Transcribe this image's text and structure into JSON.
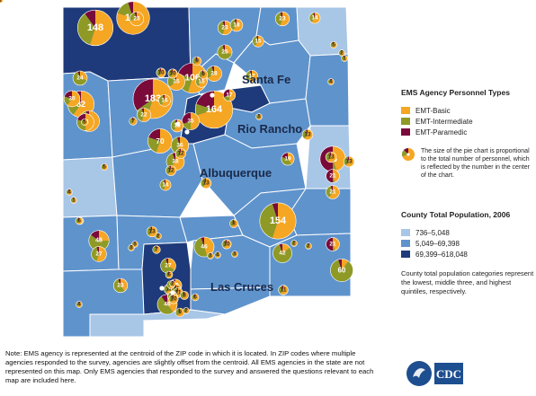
{
  "colors": {
    "emt_basic": "#f5a623",
    "emt_intermediate": "#8f9a26",
    "emt_paramedic": "#7a0a3a",
    "pop_low": "#a8c6e6",
    "pop_mid": "#5f93cc",
    "pop_high": "#1f3a7a",
    "county_border": "#ffffff"
  },
  "cities": [
    {
      "name": "Santa Fe"
    },
    {
      "name": "Rio Rancho"
    },
    {
      "name": "Albuquerque"
    },
    {
      "name": "Las Cruces"
    }
  ],
  "legend": {
    "personnel_title": "EMS Agency Personnel Types",
    "personnel_types": [
      {
        "label": "EMT-Basic",
        "color": "#f5a623"
      },
      {
        "label": "EMT-Intermediate",
        "color": "#8f9a26"
      },
      {
        "label": "EMT-Paramedic",
        "color": "#7a0a3a"
      }
    ],
    "pie_note": "The size of the pie chart is proportional to the total number of personnel, which is reflected by the number in the center of the chart.",
    "population_title": "County Total Population, 2006",
    "population_classes": [
      {
        "label": "736–5,048",
        "color": "#a8c6e6"
      },
      {
        "label": "5,049–69,398",
        "color": "#5f93cc"
      },
      {
        "label": "69,399–618,048",
        "color": "#1f3a7a"
      }
    ],
    "quintile_note": "County total population categories represent the lowest, middle three, and highest quintiles, respectively."
  },
  "footnote": "Note: EMS agency is represented at the centroid of the ZIP code in which it is located. In ZIP codes where multiple agencies responded to the survey, agencies are slightly offset from the centroid. All EMS agencies in the state are not represented on this map. Only EMS agencies that responded to the survey and answered the questions relevant to each map are included here.",
  "logo_text": "CDC",
  "agencies": [
    {
      "total": "148",
      "basic": 0.55,
      "intermediate": 0.35,
      "paramedic": 0.1
    },
    {
      "total": "127",
      "basic": 0.8,
      "intermediate": 0.15,
      "paramedic": 0.05
    },
    {
      "total": "183",
      "basic": 0.55,
      "intermediate": 0.1,
      "paramedic": 0.35
    },
    {
      "total": "164",
      "basic": 0.7,
      "intermediate": 0.1,
      "paramedic": 0.2
    },
    {
      "total": "106",
      "basic": 0.55,
      "intermediate": 0.25,
      "paramedic": 0.2
    },
    {
      "total": "154",
      "basic": 0.55,
      "intermediate": 0.4,
      "paramedic": 0.05
    },
    {
      "total": "82",
      "basic": 0.6,
      "intermediate": 0.35,
      "paramedic": 0.05
    },
    {
      "total": "76",
      "basic": 0.45,
      "intermediate": 0.05,
      "paramedic": 0.5
    },
    {
      "total": "70",
      "basic": 0.55,
      "intermediate": 0.25,
      "paramedic": 0.2
    },
    {
      "total": "60",
      "basic": 0.1,
      "intermediate": 0.85,
      "paramedic": 0.05
    },
    {
      "total": "51",
      "basic": 0.65,
      "intermediate": 0.3,
      "paramedic": 0.05
    },
    {
      "total": "48",
      "basic": 0.25,
      "intermediate": 0.6,
      "paramedic": 0.15
    },
    {
      "total": "46",
      "basic": 0.45,
      "intermediate": 0.5,
      "paramedic": 0.05
    },
    {
      "total": "46",
      "basic": 0.4,
      "intermediate": 0.5,
      "paramedic": 0.1
    },
    {
      "total": "42",
      "basic": 0.15,
      "intermediate": 0.8,
      "paramedic": 0.05
    },
    {
      "total": "38",
      "basic": 0.6,
      "intermediate": 0.35,
      "paramedic": 0.05
    },
    {
      "total": "36",
      "basic": 0.6,
      "intermediate": 0.35,
      "paramedic": 0.05
    },
    {
      "total": "35",
      "basic": 0.65,
      "intermediate": 0.3,
      "paramedic": 0.05
    },
    {
      "total": "35",
      "basic": 0.5,
      "intermediate": 0.2,
      "paramedic": 0.3
    },
    {
      "total": "34",
      "basic": 0.5,
      "intermediate": 0.3,
      "paramedic": 0.2
    },
    {
      "total": "30",
      "basic": 0.6,
      "intermediate": 0.2,
      "paramedic": 0.2
    },
    {
      "total": "28",
      "basic": 0.65,
      "intermediate": 0.3,
      "paramedic": 0.05
    },
    {
      "total": "27",
      "basic": 0.55,
      "intermediate": 0.4,
      "paramedic": 0.05
    },
    {
      "total": "27",
      "basic": 0.35,
      "intermediate": 0.6,
      "paramedic": 0.05
    },
    {
      "total": "25",
      "basic": 0.3,
      "intermediate": 0.65,
      "paramedic": 0.05
    },
    {
      "total": "24",
      "basic": 0.3,
      "intermediate": 0.65,
      "paramedic": 0.05
    },
    {
      "total": "23",
      "basic": 0.55,
      "intermediate": 0.4,
      "paramedic": 0.05
    },
    {
      "total": "23",
      "basic": 0.7,
      "intermediate": 0.25,
      "paramedic": 0.05
    },
    {
      "total": "23",
      "basic": 0.55,
      "intermediate": 0.4,
      "paramedic": 0.05
    },
    {
      "total": "23",
      "basic": 0.4,
      "intermediate": 0.55,
      "paramedic": 0.05
    },
    {
      "total": "22",
      "basic": 0.55,
      "intermediate": 0.4,
      "paramedic": 0.05
    },
    {
      "total": "21",
      "basic": 0.45,
      "intermediate": 0.05,
      "paramedic": 0.5
    },
    {
      "total": "21",
      "basic": 0.45,
      "intermediate": 0.05,
      "paramedic": 0.5
    },
    {
      "total": "21",
      "basic": 0.6,
      "intermediate": 0.35,
      "paramedic": 0.05
    },
    {
      "total": "19",
      "basic": 0.4,
      "intermediate": 0.4,
      "paramedic": 0.2
    },
    {
      "total": "19",
      "basic": 0.6,
      "intermediate": 0.35,
      "paramedic": 0.05
    },
    {
      "total": "18",
      "basic": 0.6,
      "intermediate": 0.35,
      "paramedic": 0.05
    },
    {
      "total": "18",
      "basic": 0.6,
      "intermediate": 0.35,
      "paramedic": 0.05
    },
    {
      "total": "17",
      "basic": 0.6,
      "intermediate": 0.35,
      "paramedic": 0.05
    },
    {
      "total": "17",
      "basic": 0.5,
      "intermediate": 0.2,
      "paramedic": 0.3
    },
    {
      "total": "16",
      "basic": 0.6,
      "intermediate": 0.35,
      "paramedic": 0.05
    },
    {
      "total": "15",
      "basic": 0.6,
      "intermediate": 0.35,
      "paramedic": 0.05
    },
    {
      "total": "15",
      "basic": 0.6,
      "intermediate": 0.35,
      "paramedic": 0.05
    },
    {
      "total": "14",
      "basic": 0.6,
      "intermediate": 0.35,
      "paramedic": 0.05
    },
    {
      "total": "14",
      "basic": 0.55,
      "intermediate": 0.4,
      "paramedic": 0.05
    },
    {
      "total": "13",
      "basic": 0.6,
      "intermediate": 0.35,
      "paramedic": 0.05
    },
    {
      "total": "13",
      "basic": 0.6,
      "intermediate": 0.35,
      "paramedic": 0.05
    },
    {
      "total": "13",
      "basic": 0.6,
      "intermediate": 0.35,
      "paramedic": 0.05
    },
    {
      "total": "13",
      "basic": 0.6,
      "intermediate": 0.35,
      "paramedic": 0.05
    },
    {
      "total": "13",
      "basic": 0.6,
      "intermediate": 0.35,
      "paramedic": 0.05
    },
    {
      "total": "12",
      "basic": 0.6,
      "intermediate": 0.35,
      "paramedic": 0.05
    },
    {
      "total": "12",
      "basic": 0.6,
      "intermediate": 0.35,
      "paramedic": 0.05
    },
    {
      "total": "12",
      "basic": 0.6,
      "intermediate": 0.35,
      "paramedic": 0.05
    },
    {
      "total": "11",
      "basic": 0.6,
      "intermediate": 0.35,
      "paramedic": 0.05
    },
    {
      "total": "11",
      "basic": 0.6,
      "intermediate": 0.35,
      "paramedic": 0.05
    },
    {
      "total": "11",
      "basic": 0.6,
      "intermediate": 0.35,
      "paramedic": 0.05
    },
    {
      "total": "11",
      "basic": 0.6,
      "intermediate": 0.35,
      "paramedic": 0.05
    },
    {
      "total": "10",
      "basic": 0.6,
      "intermediate": 0.35,
      "paramedic": 0.05
    },
    {
      "total": "10",
      "basic": 0.6,
      "intermediate": 0.35,
      "paramedic": 0.05
    },
    {
      "total": "10",
      "basic": 0.6,
      "intermediate": 0.35,
      "paramedic": 0.05
    },
    {
      "total": "10",
      "basic": 0.6,
      "intermediate": 0.35,
      "paramedic": 0.05
    },
    {
      "total": "9",
      "basic": 0.6,
      "intermediate": 0.35,
      "paramedic": 0.05
    },
    {
      "total": "9",
      "basic": 0.6,
      "intermediate": 0.35,
      "paramedic": 0.05
    },
    {
      "total": "9",
      "basic": 0.6,
      "intermediate": 0.35,
      "paramedic": 0.05
    },
    {
      "total": "8",
      "basic": 0.6,
      "intermediate": 0.35,
      "paramedic": 0.05
    },
    {
      "total": "8",
      "basic": 0.6,
      "intermediate": 0.35,
      "paramedic": 0.05
    },
    {
      "total": "7",
      "basic": 0.6,
      "intermediate": 0.35,
      "paramedic": 0.05
    },
    {
      "total": "7",
      "basic": 0.6,
      "intermediate": 0.35,
      "paramedic": 0.05
    },
    {
      "total": "7",
      "basic": 0.6,
      "intermediate": 0.35,
      "paramedic": 0.05
    },
    {
      "total": "6",
      "basic": 0.6,
      "intermediate": 0.35,
      "paramedic": 0.05
    },
    {
      "total": "6",
      "basic": 0.6,
      "intermediate": 0.35,
      "paramedic": 0.05
    },
    {
      "total": "6",
      "basic": 0.6,
      "intermediate": 0.35,
      "paramedic": 0.05
    },
    {
      "total": "6",
      "basic": 0.6,
      "intermediate": 0.35,
      "paramedic": 0.05
    },
    {
      "total": "5",
      "basic": 0.6,
      "intermediate": 0.35,
      "paramedic": 0.05
    },
    {
      "total": "5",
      "basic": 0.6,
      "intermediate": 0.35,
      "paramedic": 0.05
    },
    {
      "total": "5",
      "basic": 0.6,
      "intermediate": 0.35,
      "paramedic": 0.05
    },
    {
      "total": "4",
      "basic": 0.6,
      "intermediate": 0.35,
      "paramedic": 0.05
    },
    {
      "total": "4",
      "basic": 0.6,
      "intermediate": 0.35,
      "paramedic": 0.05
    },
    {
      "total": "4",
      "basic": 0.6,
      "intermediate": 0.35,
      "paramedic": 0.05
    },
    {
      "total": "4",
      "basic": 0.6,
      "intermediate": 0.35,
      "paramedic": 0.05
    },
    {
      "total": "3",
      "basic": 0.6,
      "intermediate": 0.35,
      "paramedic": 0.05
    },
    {
      "total": "3",
      "basic": 0.6,
      "intermediate": 0.35,
      "paramedic": 0.05
    },
    {
      "total": "3",
      "basic": 0.6,
      "intermediate": 0.35,
      "paramedic": 0.05
    },
    {
      "total": "3",
      "basic": 0.6,
      "intermediate": 0.35,
      "paramedic": 0.05
    },
    {
      "total": "3",
      "basic": 0.6,
      "intermediate": 0.35,
      "paramedic": 0.05
    },
    {
      "total": "2",
      "basic": 0.6,
      "intermediate": 0.35,
      "paramedic": 0.05
    },
    {
      "total": "2",
      "basic": 0.6,
      "intermediate": 0.35,
      "paramedic": 0.05
    },
    {
      "total": "2",
      "basic": 0.6,
      "intermediate": 0.35,
      "paramedic": 0.05
    },
    {
      "total": "2",
      "basic": 0.6,
      "intermediate": 0.35,
      "paramedic": 0.05
    },
    {
      "total": "2",
      "basic": 0.6,
      "intermediate": 0.35,
      "paramedic": 0.05
    },
    {
      "total": "2",
      "basic": 0.6,
      "intermediate": 0.35,
      "paramedic": 0.05
    },
    {
      "total": "1",
      "basic": 0.6,
      "intermediate": 0.35,
      "paramedic": 0.05
    },
    {
      "total": "1",
      "basic": 0.6,
      "intermediate": 0.35,
      "paramedic": 0.05
    },
    {
      "total": "1",
      "basic": 0.6,
      "intermediate": 0.35,
      "paramedic": 0.05
    },
    {
      "total": "1",
      "basic": 0.6,
      "intermediate": 0.35,
      "paramedic": 0.05
    }
  ]
}
